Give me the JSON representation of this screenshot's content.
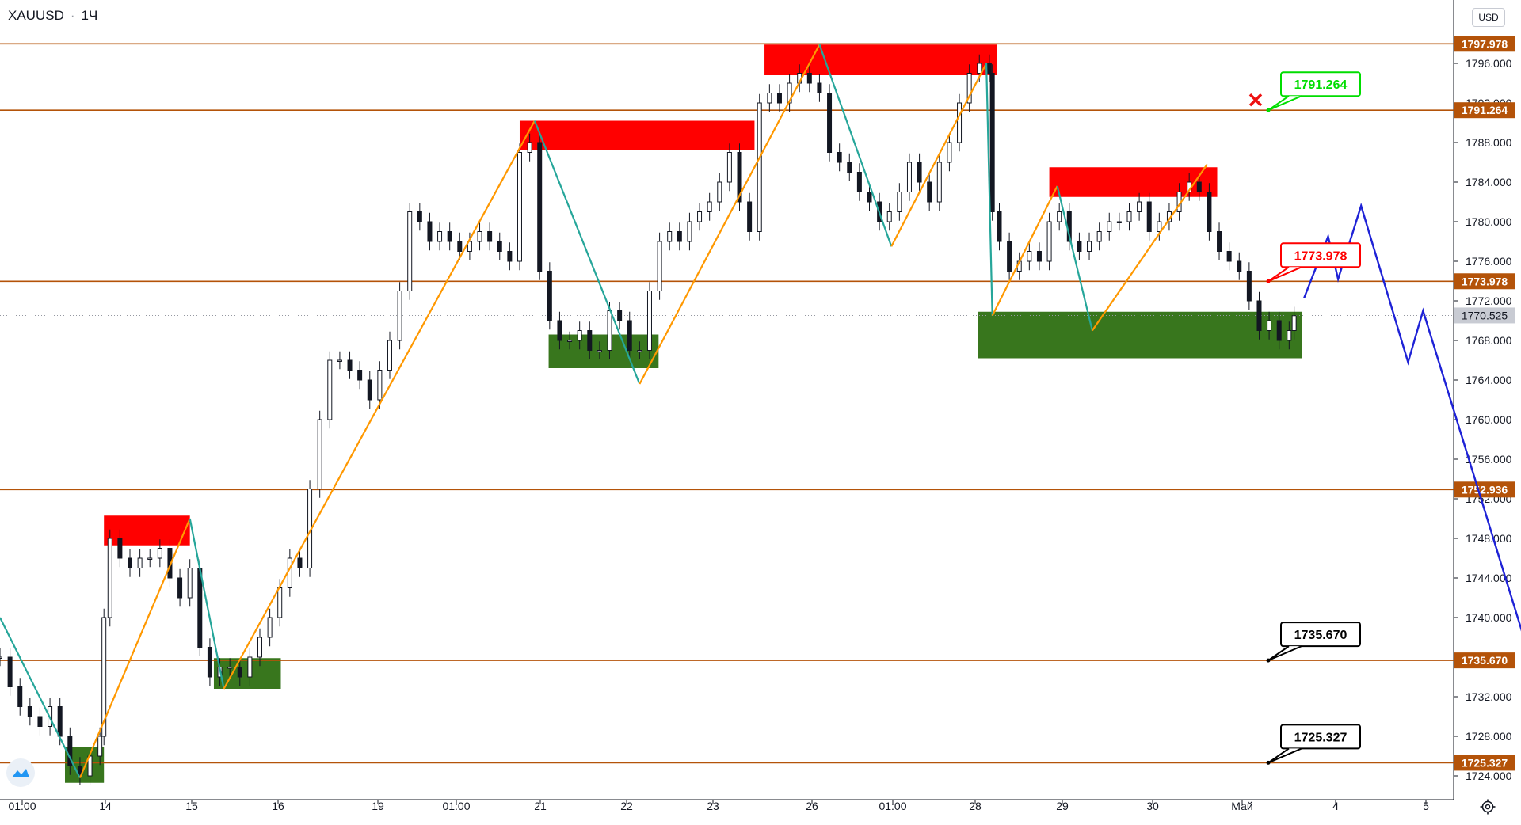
{
  "header": {
    "symbol": "XAUUSD",
    "separator": "·",
    "interval": "1Ч"
  },
  "currency": "USD",
  "chart_data": {
    "type": "line",
    "symbol": "XAUUSD",
    "timeframe": "1Ч",
    "ylim": [
      1722.0,
      1802.0
    ],
    "y_ticks": [
      "1796.000",
      "1792.000",
      "1788.000",
      "1784.000",
      "1780.000",
      "1776.000",
      "1772.000",
      "1768.000",
      "1764.000",
      "1760.000",
      "1756.000",
      "1752.000",
      "1748.000",
      "1744.000",
      "1740.000",
      "1736.000",
      "1732.000",
      "1728.000",
      "1724.000"
    ],
    "x_ticks": [
      "01:00",
      "14",
      "15",
      "16",
      "19",
      "01:00",
      "21",
      "22",
      "23",
      "26",
      "01:00",
      "28",
      "29",
      "30",
      "Май",
      "4",
      "5"
    ],
    "levels": [
      {
        "price": 1797.978,
        "label": "1797.978"
      },
      {
        "price": 1791.264,
        "label": "1791.264"
      },
      {
        "price": 1773.978,
        "label": "1773.978"
      },
      {
        "price": 1752.936,
        "label": "1752.936"
      },
      {
        "price": 1735.67,
        "label": "1735.670"
      },
      {
        "price": 1725.327,
        "label": "1725.327"
      }
    ],
    "last_price": {
      "price": 1770.525,
      "label": "1770.525"
    },
    "callouts": [
      {
        "label": "1791.264",
        "price": 1791.264,
        "status": "hit",
        "color": "#00dd00"
      },
      {
        "label": "1773.978",
        "price": 1773.978,
        "status": "level",
        "color": "#ff0000"
      },
      {
        "label": "1735.670",
        "price": 1735.67,
        "status": "target",
        "color": "#000000"
      },
      {
        "label": "1725.327",
        "price": 1725.327,
        "status": "target",
        "color": "#000000"
      }
    ],
    "supply_zones": [
      {
        "t0": 104,
        "t1": 190,
        "p0": 1750.3,
        "p1": 1747.3
      },
      {
        "t0": 520,
        "t1": 755,
        "p0": 1790.2,
        "p1": 1787.2
      },
      {
        "t0": 765,
        "t1": 998,
        "p0": 1797.9,
        "p1": 1794.8
      },
      {
        "t0": 1050,
        "t1": 1218,
        "p0": 1785.5,
        "p1": 1782.5
      }
    ],
    "demand_zones": [
      {
        "t0": 65,
        "t1": 104,
        "p0": 1726.9,
        "p1": 1723.3
      },
      {
        "t0": 214,
        "t1": 281,
        "p0": 1735.9,
        "p1": 1732.8
      },
      {
        "t0": 549,
        "t1": 659,
        "p0": 1768.6,
        "p1": 1765.2
      },
      {
        "t0": 979,
        "t1": 1303,
        "p0": 1770.9,
        "p1": 1766.2
      }
    ],
    "zigzag": [
      [
        0,
        1740.0
      ],
      [
        80,
        1723.8
      ],
      [
        190,
        1750.0
      ],
      [
        224,
        1732.8
      ],
      [
        535,
        1790.2
      ],
      [
        640,
        1763.6
      ],
      [
        820,
        1797.9
      ],
      [
        892,
        1777.5
      ],
      [
        987,
        1796.0
      ],
      [
        993,
        1770.5
      ],
      [
        1058,
        1783.6
      ],
      [
        1093,
        1769.0
      ],
      [
        1208,
        1785.8
      ]
    ],
    "forecast_path": [
      [
        1305,
        1772.3
      ],
      [
        1329,
        1778.5
      ],
      [
        1339,
        1774.2
      ],
      [
        1362,
        1781.6
      ],
      [
        1409,
        1765.8
      ],
      [
        1424,
        1771.0
      ],
      [
        1545,
        1731.4
      ],
      [
        1557,
        1736.8
      ],
      [
        1593,
        1725.6
      ]
    ],
    "series": [
      {
        "name": "",
        "x": [
          0,
          10,
          20,
          30,
          40,
          50,
          60,
          70,
          80,
          90,
          100,
          104,
          110,
          120,
          130,
          140,
          150,
          160,
          170,
          180,
          190,
          200,
          210,
          220,
          230,
          240,
          250,
          260,
          270,
          280,
          290,
          300,
          310,
          320,
          330,
          340,
          350,
          360,
          370,
          380,
          390,
          400,
          410,
          420,
          430,
          440,
          450,
          460,
          470,
          480,
          490,
          500,
          510,
          520,
          530,
          540,
          550,
          560,
          570,
          580,
          590,
          600,
          610,
          620,
          630,
          640,
          650,
          660,
          670,
          680,
          690,
          700,
          710,
          720,
          730,
          740,
          750,
          760,
          770,
          780,
          790,
          800,
          810,
          820,
          830,
          840,
          850,
          860,
          870,
          880,
          890,
          900,
          910,
          920,
          930,
          940,
          950,
          960,
          970,
          980,
          990,
          993,
          1000,
          1010,
          1020,
          1030,
          1040,
          1050,
          1060,
          1070,
          1080,
          1090,
          1100,
          1110,
          1120,
          1130,
          1140,
          1150,
          1160,
          1170,
          1180,
          1190,
          1200,
          1210,
          1220,
          1230,
          1240,
          1250,
          1260,
          1270,
          1280,
          1290,
          1295
        ],
        "close": [
          1736,
          1733,
          1731,
          1730,
          1729,
          1731,
          1728,
          1725,
          1724,
          1726,
          1728,
          1740,
          1748,
          1746,
          1745,
          1746,
          1746,
          1747,
          1744,
          1742,
          1745,
          1737,
          1734,
          1735,
          1735,
          1734,
          1736,
          1738,
          1740,
          1743,
          1746,
          1745,
          1753,
          1760,
          1766,
          1766,
          1765,
          1764,
          1762,
          1765,
          1768,
          1773,
          1781,
          1780,
          1778,
          1779,
          1778,
          1777,
          1778,
          1779,
          1778,
          1777,
          1776,
          1787,
          1788,
          1775,
          1770,
          1768,
          1768,
          1769,
          1767,
          1767,
          1771,
          1770,
          1767,
          1767,
          1773,
          1778,
          1779,
          1778,
          1780,
          1781,
          1782,
          1784,
          1787,
          1782,
          1779,
          1792,
          1793,
          1792,
          1794,
          1795,
          1794,
          1793,
          1787,
          1786,
          1785,
          1783,
          1782,
          1780,
          1781,
          1783,
          1786,
          1784,
          1782,
          1786,
          1788,
          1792,
          1795,
          1796,
          1795,
          1781,
          1778,
          1775,
          1776,
          1777,
          1776,
          1780,
          1781,
          1778,
          1777,
          1778,
          1779,
          1780,
          1780,
          1781,
          1782,
          1779,
          1780,
          1781,
          1783,
          1784,
          1783,
          1779,
          1777,
          1776,
          1775,
          1772,
          1769,
          1770,
          1768,
          1769,
          1770.5
        ]
      }
    ]
  }
}
